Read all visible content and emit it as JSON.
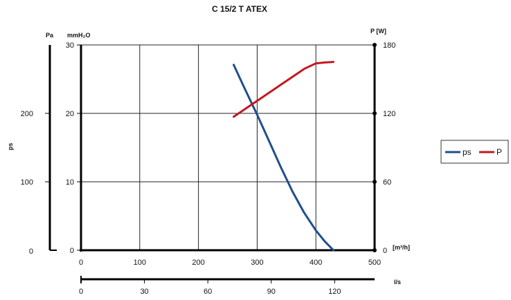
{
  "chart_data": {
    "type": "line",
    "title": "C 15/2 T ATEX",
    "x_axis": {
      "unit": "[m³/h]",
      "range": [
        0,
        500
      ],
      "ticks": [
        "0",
        "100",
        "200",
        "300",
        "400",
        "500"
      ]
    },
    "x_axis_secondary": {
      "unit": "l/s",
      "range": [
        0,
        138.9
      ],
      "ticks": [
        "0",
        "30",
        "60",
        "90",
        "120"
      ]
    },
    "y_axis_left": {
      "unit": "mmH₂O",
      "range": [
        0,
        30
      ],
      "ticks": [
        "0",
        "10",
        "20",
        "30"
      ]
    },
    "y_axis_pa": {
      "label": "ps",
      "unit": "Pa",
      "range": [
        0,
        300
      ],
      "ticks": [
        "0",
        "100",
        "200"
      ]
    },
    "y_axis_right": {
      "unit": "P [W]",
      "range": [
        0,
        180
      ],
      "ticks": [
        "0",
        "60",
        "120",
        "180"
      ]
    },
    "grid": true,
    "legend_position": "right",
    "series": [
      {
        "name": "ps",
        "axis": "left",
        "color": "#1f4e8c",
        "x": [
          260,
          280,
          300,
          320,
          340,
          360,
          380,
          400,
          415,
          430
        ],
        "y": [
          27.1,
          23.4,
          19.8,
          16.0,
          12.2,
          8.6,
          5.5,
          2.9,
          1.3,
          0
        ]
      },
      {
        "name": "P",
        "axis": "right",
        "color": "#c0191f",
        "x": [
          260,
          280,
          300,
          320,
          340,
          360,
          380,
          400,
          415,
          430
        ],
        "y": [
          117,
          124,
          131,
          138,
          145,
          152,
          159,
          163.8,
          164.6,
          165.1
        ]
      }
    ]
  }
}
